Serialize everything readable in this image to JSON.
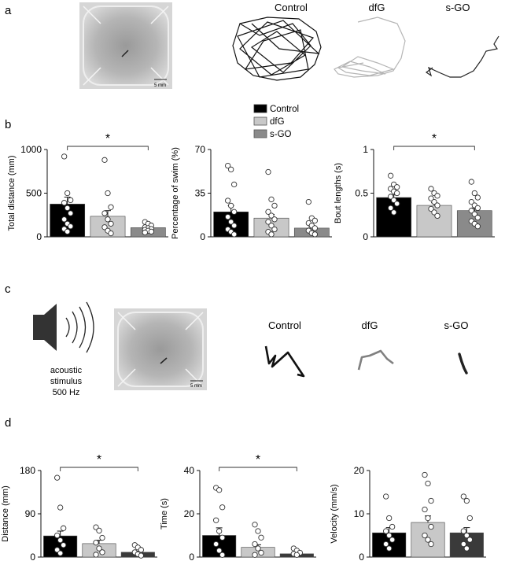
{
  "panels": {
    "a": {
      "label": "a",
      "traces": [
        "Control",
        "dfG",
        "s-GO"
      ],
      "scale_bar": "5 mm"
    },
    "b": {
      "label": "b"
    },
    "c": {
      "label": "c",
      "stimulus_lines": [
        "acoustic",
        "stimulus",
        "500 Hz"
      ],
      "traces": [
        "Control",
        "dfG",
        "s-GO"
      ],
      "scale_bar": "5 mm"
    },
    "d": {
      "label": "d"
    }
  },
  "legend": {
    "entries": [
      "Control",
      "dfG",
      "s-GO"
    ],
    "placement": "top-center"
  },
  "colors": {
    "control": "#000000",
    "dfg": "#c8c8c8",
    "sgo": "#8a8a8a",
    "sgo_d": "#3a3a3a"
  },
  "chart_data": [
    {
      "type": "bar",
      "panel": "b",
      "ylabel": "Total distance (mm)",
      "ylim": [
        0,
        1000
      ],
      "yticks": [
        0,
        500,
        1000
      ],
      "categories": [
        "Control",
        "dfG",
        "s-GO"
      ],
      "values": [
        375,
        235,
        105
      ],
      "errors": [
        80,
        65,
        15
      ],
      "points": [
        [
          920,
          500,
          420,
          390,
          330,
          270,
          200,
          150,
          120,
          90,
          60
        ],
        [
          880,
          500,
          340,
          270,
          200,
          150,
          110,
          70,
          40
        ],
        [
          170,
          150,
          130,
          110,
          100,
          90,
          80,
          70,
          60,
          50
        ]
      ],
      "significance": {
        "label": "*",
        "from": 0,
        "to": 2
      }
    },
    {
      "type": "bar",
      "panel": "b",
      "ylabel": "Percentage of swim (%)",
      "ylim": [
        0,
        70
      ],
      "yticks": [
        0,
        35,
        70
      ],
      "categories": [
        "Control",
        "dfG",
        "s-GO"
      ],
      "values": [
        20,
        15,
        7
      ],
      "errors": [
        5,
        3,
        1
      ],
      "points": [
        [
          57,
          54,
          42,
          29,
          25,
          20,
          16,
          12,
          9,
          6,
          4,
          2
        ],
        [
          52,
          30,
          25,
          20,
          17,
          14,
          12,
          9,
          6,
          4,
          2
        ],
        [
          28,
          15,
          13,
          11,
          9,
          7,
          5,
          3,
          2
        ]
      ]
    },
    {
      "type": "bar",
      "panel": "b",
      "ylabel": "Bout lengths (s)",
      "ylim": [
        0,
        1.0
      ],
      "yticks": [
        0,
        0.5,
        1.0
      ],
      "categories": [
        "Control",
        "dfG",
        "s-GO"
      ],
      "values": [
        0.45,
        0.36,
        0.3
      ],
      "errors": [
        0.03,
        0.03,
        0.03
      ],
      "points": [
        [
          0.7,
          0.6,
          0.57,
          0.55,
          0.52,
          0.5,
          0.46,
          0.42,
          0.38,
          0.33,
          0.28
        ],
        [
          0.55,
          0.5,
          0.47,
          0.44,
          0.4,
          0.36,
          0.32,
          0.28,
          0.24
        ],
        [
          0.63,
          0.5,
          0.45,
          0.4,
          0.36,
          0.33,
          0.3,
          0.26,
          0.22,
          0.18,
          0.15,
          0.12
        ]
      ],
      "significance": {
        "label": "*",
        "from": 0,
        "to": 2
      }
    },
    {
      "type": "bar",
      "panel": "d",
      "ylabel": "Distance (mm)",
      "ylim": [
        0,
        180
      ],
      "yticks": [
        0,
        90,
        180
      ],
      "categories": [
        "Control",
        "dfG",
        "s-GO"
      ],
      "values": [
        44,
        28,
        10
      ],
      "errors": [
        10,
        7,
        2
      ],
      "points": [
        [
          165,
          103,
          60,
          45,
          35,
          25,
          15,
          8
        ],
        [
          62,
          55,
          40,
          30,
          18,
          10,
          5
        ],
        [
          25,
          20,
          15,
          10,
          6,
          3
        ]
      ],
      "significance": {
        "label": "*",
        "from": 0,
        "to": 2
      }
    },
    {
      "type": "bar",
      "panel": "d",
      "ylabel": "Time (s)",
      "ylim": [
        0,
        40
      ],
      "yticks": [
        0,
        20,
        40
      ],
      "categories": [
        "Control",
        "dfG",
        "s-GO"
      ],
      "values": [
        10,
        4.5,
        1.5
      ],
      "errors": [
        3.5,
        1.2,
        0.3
      ],
      "points": [
        [
          32,
          31,
          23,
          17,
          12,
          9,
          6,
          3,
          1
        ],
        [
          15,
          12,
          9,
          6,
          4,
          2,
          1
        ],
        [
          4,
          3,
          2,
          1.5,
          1
        ]
      ],
      "significance": {
        "label": "*",
        "from": 0,
        "to": 2
      }
    },
    {
      "type": "bar",
      "panel": "d",
      "ylabel": "Velocity (mm/s)",
      "ylim": [
        0,
        20
      ],
      "yticks": [
        0,
        10,
        20
      ],
      "categories": [
        "Control",
        "dfG",
        "s-GO"
      ],
      "values": [
        5.6,
        8.0,
        5.6
      ],
      "errors": [
        1.2,
        1.5,
        1.2
      ],
      "points": [
        [
          14,
          9,
          7,
          6,
          5,
          4,
          3,
          2
        ],
        [
          19,
          17,
          13,
          11,
          9,
          7,
          5,
          4,
          3
        ],
        [
          14,
          13,
          9,
          6,
          5,
          4,
          3,
          2
        ]
      ]
    }
  ]
}
